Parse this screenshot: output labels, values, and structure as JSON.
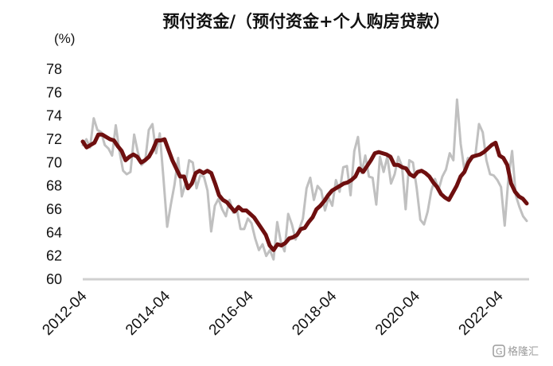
{
  "chart_data": {
    "type": "line",
    "title": "预付资金/（预付资金+个人购房贷款）",
    "unit_label": "(%)",
    "xlabel": "",
    "ylabel": "",
    "ylim": [
      60,
      78
    ],
    "yticks": [
      60,
      62,
      64,
      66,
      68,
      70,
      72,
      74,
      76,
      78
    ],
    "xticks": [
      "2012-04",
      "2014-04",
      "2016-04",
      "2018-04",
      "2020-04",
      "2022-04"
    ],
    "x_start": "2012-04",
    "x_end": "2022-12",
    "grid": false,
    "legend": "none",
    "series": [
      {
        "color": "#c0c0c0",
        "values": [
          71.5,
          72.0,
          71.3,
          73.8,
          72.8,
          72.6,
          71.5,
          71.2,
          70.6,
          73.2,
          71.0,
          69.3,
          69.0,
          69.2,
          72.4,
          70.9,
          69.8,
          70.1,
          72.8,
          73.3,
          70.8,
          72.5,
          68.6,
          64.5,
          66.4,
          68.1,
          70.4,
          67.1,
          68.2,
          70.2,
          70.0,
          67.8,
          68.9,
          68.8,
          67.6,
          64.1,
          66.3,
          66.9,
          66.0,
          65.4,
          66.8,
          65.7,
          66.0,
          64.3,
          64.3,
          65.2,
          64.8,
          63.5,
          62.5,
          63.0,
          62.0,
          62.5,
          61.7,
          64.9,
          63.2,
          62.4,
          65.6,
          64.7,
          63.4,
          64.3,
          65.2,
          67.8,
          68.7,
          66.8,
          68.0,
          67.6,
          65.9,
          67.0,
          66.3,
          68.5,
          67.5,
          69.6,
          69.7,
          67.2,
          71.0,
          72.2,
          69.1,
          70.6,
          68.8,
          68.7,
          66.4,
          70.5,
          69.2,
          70.5,
          68.2,
          69.0,
          70.5,
          69.7,
          66.0,
          70.2,
          70.0,
          67.8,
          65.1,
          64.7,
          65.8,
          67.6,
          68.6,
          67.7,
          68.8,
          69.4,
          70.8,
          70.2,
          75.4,
          71.6,
          69.4,
          70.4,
          70.3,
          70.6,
          73.3,
          72.6,
          70.2,
          69.0,
          68.9,
          68.5,
          67.9,
          64.6,
          68.6,
          71.0,
          67.2,
          66.2,
          65.4,
          65.0
        ]
      },
      {
        "color": "#6e0f0f",
        "values": [
          71.8,
          71.3,
          71.5,
          71.7,
          72.4,
          72.4,
          72.2,
          72.0,
          71.9,
          71.4,
          71.0,
          70.2,
          70.5,
          70.7,
          70.5,
          70.0,
          70.2,
          70.5,
          71.1,
          71.9,
          71.9,
          72.0,
          71.1,
          70.2,
          69.5,
          68.8,
          68.8,
          67.8,
          68.2,
          69.1,
          69.3,
          69.1,
          69.3,
          69.1,
          68.2,
          67.2,
          66.8,
          66.6,
          66.2,
          65.8,
          66.2,
          65.9,
          65.9,
          65.6,
          65.3,
          64.8,
          64.3,
          63.8,
          62.9,
          62.5,
          63.0,
          62.9,
          63.1,
          63.5,
          63.6,
          63.8,
          64.3,
          64.4,
          64.9,
          65.3,
          66.0,
          66.3,
          66.7,
          67.2,
          67.6,
          67.8,
          68.0,
          68.2,
          68.3,
          68.5,
          68.8,
          69.5,
          69.2,
          69.7,
          70.2,
          70.8,
          70.9,
          70.8,
          70.7,
          70.5,
          69.8,
          69.8,
          69.6,
          69.5,
          69.0,
          68.8,
          69.2,
          69.3,
          69.1,
          68.8,
          68.3,
          67.9,
          67.3,
          67.0,
          66.8,
          67.4,
          68.0,
          68.8,
          69.2,
          70.0,
          70.5,
          70.6,
          70.7,
          70.9,
          71.2,
          71.5,
          71.7,
          70.6,
          70.4,
          69.8,
          68.2,
          67.5,
          67.1,
          66.9,
          66.5
        ]
      }
    ]
  },
  "watermark": {
    "icon": "logo-icon",
    "text": "格隆汇"
  }
}
